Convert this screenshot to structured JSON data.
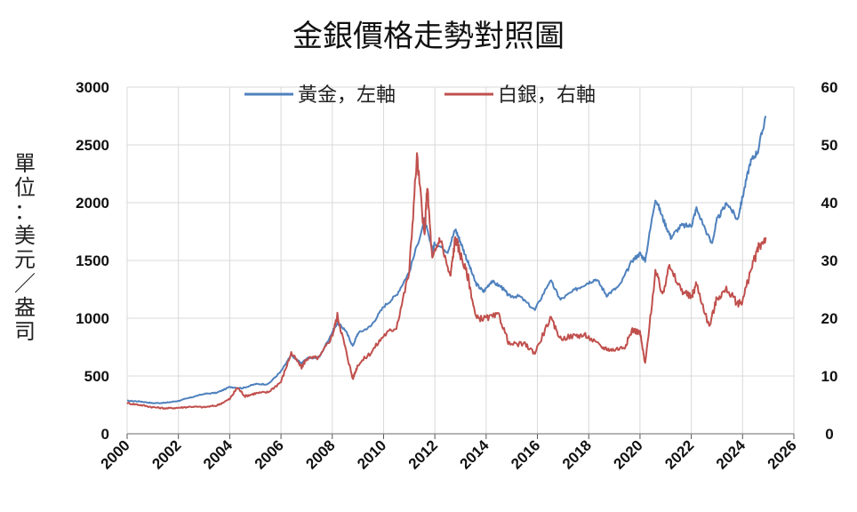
{
  "chart_data": {
    "type": "line",
    "title": "金銀價格走勢對照圖",
    "ylabel": "單位：美元／盎司",
    "xlabel": "",
    "x_ticks": [
      "2000",
      "2002",
      "2004",
      "2006",
      "2008",
      "2010",
      "2012",
      "2014",
      "2016",
      "2018",
      "2020",
      "2022",
      "2024",
      "2026"
    ],
    "xlim": [
      2000,
      2026
    ],
    "ylim_left": [
      0,
      3000
    ],
    "y_ticks_left": [
      "0",
      "500",
      "1000",
      "1500",
      "2000",
      "2500",
      "3000"
    ],
    "ylim_right": [
      0,
      60
    ],
    "y_ticks_right": [
      "0",
      "10",
      "20",
      "30",
      "40",
      "50",
      "60"
    ],
    "grid": true,
    "legend_position": "top",
    "series": [
      {
        "name": "黃金，左軸",
        "axis": "left",
        "color": "#4f81bd",
        "points": [
          [
            2000.0,
            285
          ],
          [
            2000.5,
            280
          ],
          [
            2001.0,
            265
          ],
          [
            2001.5,
            268
          ],
          [
            2002.0,
            285
          ],
          [
            2002.5,
            315
          ],
          [
            2003.0,
            345
          ],
          [
            2003.5,
            355
          ],
          [
            2004.0,
            405
          ],
          [
            2004.5,
            395
          ],
          [
            2005.0,
            430
          ],
          [
            2005.5,
            430
          ],
          [
            2006.0,
            540
          ],
          [
            2006.4,
            680
          ],
          [
            2006.8,
            610
          ],
          [
            2007.0,
            650
          ],
          [
            2007.5,
            665
          ],
          [
            2008.0,
            880
          ],
          [
            2008.2,
            960
          ],
          [
            2008.5,
            900
          ],
          [
            2008.8,
            760
          ],
          [
            2009.0,
            870
          ],
          [
            2009.5,
            930
          ],
          [
            2010.0,
            1100
          ],
          [
            2010.5,
            1200
          ],
          [
            2011.0,
            1400
          ],
          [
            2011.6,
            1850
          ],
          [
            2011.9,
            1580
          ],
          [
            2012.0,
            1650
          ],
          [
            2012.5,
            1580
          ],
          [
            2012.8,
            1770
          ],
          [
            2013.0,
            1660
          ],
          [
            2013.3,
            1480
          ],
          [
            2013.6,
            1300
          ],
          [
            2013.9,
            1230
          ],
          [
            2014.2,
            1320
          ],
          [
            2014.6,
            1270
          ],
          [
            2014.9,
            1190
          ],
          [
            2015.3,
            1190
          ],
          [
            2015.9,
            1070
          ],
          [
            2016.5,
            1330
          ],
          [
            2016.9,
            1160
          ],
          [
            2017.5,
            1250
          ],
          [
            2017.9,
            1300
          ],
          [
            2018.3,
            1340
          ],
          [
            2018.7,
            1200
          ],
          [
            2019.2,
            1280
          ],
          [
            2019.7,
            1500
          ],
          [
            2020.0,
            1560
          ],
          [
            2020.2,
            1500
          ],
          [
            2020.6,
            2040
          ],
          [
            2020.9,
            1860
          ],
          [
            2021.2,
            1700
          ],
          [
            2021.6,
            1800
          ],
          [
            2022.0,
            1800
          ],
          [
            2022.2,
            1950
          ],
          [
            2022.8,
            1640
          ],
          [
            2023.0,
            1850
          ],
          [
            2023.4,
            2000
          ],
          [
            2023.8,
            1850
          ],
          [
            2024.0,
            2050
          ],
          [
            2024.3,
            2350
          ],
          [
            2024.6,
            2450
          ],
          [
            2024.9,
            2750
          ]
        ]
      },
      {
        "name": "白銀，右軸",
        "axis": "right",
        "color": "#c0504d",
        "points": [
          [
            2000.0,
            5.3
          ],
          [
            2000.5,
            5.0
          ],
          [
            2001.0,
            4.6
          ],
          [
            2001.5,
            4.4
          ],
          [
            2002.0,
            4.5
          ],
          [
            2002.5,
            4.7
          ],
          [
            2003.0,
            4.6
          ],
          [
            2003.5,
            4.9
          ],
          [
            2004.0,
            6.0
          ],
          [
            2004.3,
            8.0
          ],
          [
            2004.6,
            6.5
          ],
          [
            2005.0,
            7.0
          ],
          [
            2005.5,
            7.2
          ],
          [
            2006.0,
            9.0
          ],
          [
            2006.4,
            14.0
          ],
          [
            2006.8,
            11.5
          ],
          [
            2007.0,
            13.0
          ],
          [
            2007.5,
            13.2
          ],
          [
            2008.0,
            17.0
          ],
          [
            2008.2,
            20.5
          ],
          [
            2008.5,
            15.0
          ],
          [
            2008.8,
            9.5
          ],
          [
            2009.0,
            12.0
          ],
          [
            2009.5,
            14.0
          ],
          [
            2010.0,
            17.0
          ],
          [
            2010.5,
            18.5
          ],
          [
            2011.0,
            28.0
          ],
          [
            2011.3,
            48.0
          ],
          [
            2011.6,
            34.0
          ],
          [
            2011.7,
            43.0
          ],
          [
            2011.9,
            30.0
          ],
          [
            2012.2,
            34.0
          ],
          [
            2012.6,
            27.0
          ],
          [
            2012.8,
            34.0
          ],
          [
            2013.0,
            31.0
          ],
          [
            2013.3,
            27.0
          ],
          [
            2013.6,
            20.0
          ],
          [
            2014.0,
            20.0
          ],
          [
            2014.5,
            20.5
          ],
          [
            2014.9,
            15.5
          ],
          [
            2015.5,
            15.5
          ],
          [
            2015.9,
            14.0
          ],
          [
            2016.5,
            20.0
          ],
          [
            2016.9,
            16.5
          ],
          [
            2017.5,
            17.0
          ],
          [
            2017.9,
            17.0
          ],
          [
            2018.5,
            15.0
          ],
          [
            2018.9,
            14.5
          ],
          [
            2019.4,
            15.0
          ],
          [
            2019.7,
            18.0
          ],
          [
            2020.0,
            17.5
          ],
          [
            2020.2,
            12.0
          ],
          [
            2020.6,
            28.0
          ],
          [
            2020.9,
            24.0
          ],
          [
            2021.1,
            29.0
          ],
          [
            2021.6,
            25.0
          ],
          [
            2022.0,
            23.5
          ],
          [
            2022.2,
            26.0
          ],
          [
            2022.7,
            18.5
          ],
          [
            2023.0,
            23.5
          ],
          [
            2023.4,
            25.0
          ],
          [
            2023.8,
            22.5
          ],
          [
            2024.0,
            23.0
          ],
          [
            2024.3,
            28.0
          ],
          [
            2024.6,
            32.0
          ],
          [
            2024.9,
            34.0
          ]
        ]
      }
    ]
  }
}
